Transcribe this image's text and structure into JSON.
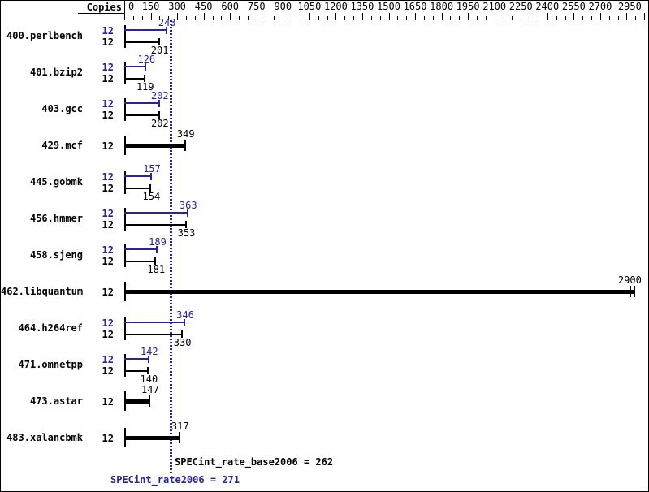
{
  "header": {
    "copies_label": "Copies"
  },
  "colors": {
    "peak_blue": "#26269a",
    "bar_black": "#000000",
    "background": "#ffffff",
    "border": "#000000"
  },
  "axis": {
    "tick_min": 0,
    "tick_max": 2950,
    "minor_step": 50,
    "major_step": 150,
    "labeled_ticks": [
      0,
      150,
      300,
      450,
      600,
      750,
      900,
      1050,
      1200,
      1350,
      1500,
      1650,
      1800,
      1950,
      2100,
      2250,
      2400,
      2550,
      2700,
      2950
    ]
  },
  "summary": {
    "base_text": "SPECint_rate_base2006 = 262",
    "peak_text": "SPECint_rate2006 = 271",
    "base_value": 262,
    "peak_value": 271
  },
  "chart_data": {
    "type": "bar",
    "orientation": "horizontal",
    "xlim": [
      0,
      2975
    ],
    "xlabel": "",
    "ylabel": "",
    "legend": "none",
    "grid": false,
    "categories": [
      "400.perlbench",
      "401.bzip2",
      "403.gcc",
      "429.mcf",
      "445.gobmk",
      "456.hmmer",
      "458.sjeng",
      "462.libquantum",
      "464.h264ref",
      "471.omnetpp",
      "473.astar",
      "483.xalancbmk"
    ],
    "series": [
      {
        "name": "SPECint_rate2006 (peak)",
        "color_role": "peak_blue",
        "values": [
          243,
          126,
          202,
          349,
          157,
          363,
          189,
          2900,
          346,
          142,
          147,
          317
        ]
      },
      {
        "name": "SPECint_rate_base2006 (base)",
        "color_role": "bar_black",
        "values": [
          201,
          119,
          202,
          349,
          154,
          353,
          181,
          2900,
          330,
          140,
          147,
          317
        ]
      }
    ],
    "benchmarks": [
      {
        "name": "400.perlbench",
        "copies": 12,
        "peak": 243,
        "base": 201,
        "combined": false
      },
      {
        "name": "401.bzip2",
        "copies": 12,
        "peak": 126,
        "base": 119,
        "combined": false
      },
      {
        "name": "403.gcc",
        "copies": 12,
        "peak": 202,
        "base": 202,
        "combined": false
      },
      {
        "name": "429.mcf",
        "copies": 12,
        "peak": 349,
        "base": 349,
        "combined": true,
        "shown_value": 349
      },
      {
        "name": "445.gobmk",
        "copies": 12,
        "peak": 157,
        "base": 154,
        "combined": false
      },
      {
        "name": "456.hmmer",
        "copies": 12,
        "peak": 363,
        "base": 353,
        "combined": false
      },
      {
        "name": "458.sjeng",
        "copies": 12,
        "peak": 189,
        "base": 181,
        "combined": false
      },
      {
        "name": "462.libquantum",
        "copies": 12,
        "peak": 2900,
        "base": 2900,
        "combined": true,
        "shown_value": 2900,
        "double_end_cap": true
      },
      {
        "name": "464.h264ref",
        "copies": 12,
        "peak": 346,
        "base": 330,
        "combined": false
      },
      {
        "name": "471.omnetpp",
        "copies": 12,
        "peak": 142,
        "base": 140,
        "combined": false
      },
      {
        "name": "473.astar",
        "copies": 12,
        "peak": 147,
        "base": 147,
        "combined": true,
        "shown_value": 147
      },
      {
        "name": "483.xalancbmk",
        "copies": 12,
        "peak": 317,
        "base": 317,
        "combined": true,
        "shown_value": 317
      }
    ]
  }
}
